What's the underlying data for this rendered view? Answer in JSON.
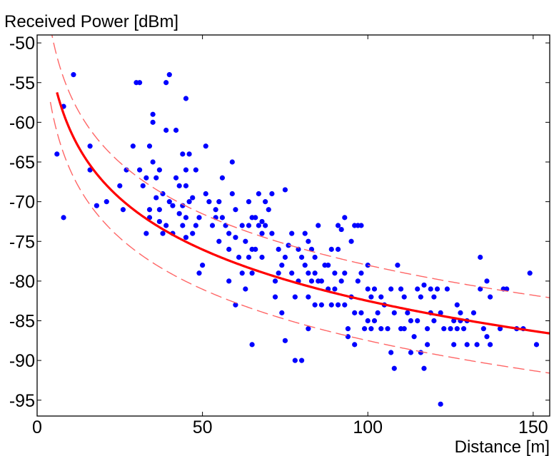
{
  "chart_data": {
    "type": "scatter",
    "title": "",
    "ylabel": "Received Power [dBm]",
    "xlabel": "Distance [m]",
    "xlim": [
      0,
      155
    ],
    "ylim": [
      -97,
      -49
    ],
    "xticks": [
      0,
      50,
      100,
      150
    ],
    "xtick_labels": [
      "0",
      "50",
      "100",
      "150"
    ],
    "yticks": [
      -50,
      -55,
      -60,
      -65,
      -70,
      -75,
      -80,
      -85,
      -90,
      -95
    ],
    "ytick_labels": [
      "-50",
      "-55",
      "-60",
      "-65",
      "-70",
      "-75",
      "-80",
      "-85",
      "-90",
      "-95"
    ],
    "grid": false,
    "legend": "none",
    "series": [
      {
        "kind": "scatter",
        "color": "#0000ff",
        "points": [
          [
            6,
            -64
          ],
          [
            8,
            -58
          ],
          [
            8,
            -72
          ],
          [
            11,
            -54
          ],
          [
            16,
            -63
          ],
          [
            16,
            -66
          ],
          [
            18,
            -70.5
          ],
          [
            21,
            -70
          ],
          [
            25,
            -68
          ],
          [
            26,
            -71
          ],
          [
            27,
            -66
          ],
          [
            29,
            -63
          ],
          [
            30,
            -55
          ],
          [
            31,
            -55
          ],
          [
            31,
            -66
          ],
          [
            32,
            -68
          ],
          [
            33,
            -67
          ],
          [
            33,
            -74
          ],
          [
            34,
            -71
          ],
          [
            34,
            -72
          ],
          [
            34,
            -63
          ],
          [
            35,
            -59
          ],
          [
            35,
            -60
          ],
          [
            35,
            -65
          ],
          [
            36,
            -67
          ],
          [
            36,
            -69.5
          ],
          [
            37,
            -66
          ],
          [
            37,
            -71
          ],
          [
            37,
            -72.5
          ],
          [
            38,
            -69
          ],
          [
            38,
            -74
          ],
          [
            39,
            -55
          ],
          [
            39,
            -61
          ],
          [
            39,
            -73
          ],
          [
            40,
            -54
          ],
          [
            40,
            -70
          ],
          [
            41,
            -70.5
          ],
          [
            41,
            -74
          ],
          [
            42,
            -61
          ],
          [
            42,
            -67
          ],
          [
            43,
            -68
          ],
          [
            43,
            -71.5
          ],
          [
            44,
            -64
          ],
          [
            44,
            -70.5
          ],
          [
            44,
            -73
          ],
          [
            45,
            -57
          ],
          [
            45,
            -66
          ],
          [
            45,
            -68
          ],
          [
            45,
            -72
          ],
          [
            45,
            -74.5
          ],
          [
            46,
            -64
          ],
          [
            46,
            -70
          ],
          [
            47,
            -69.5
          ],
          [
            47,
            -74
          ],
          [
            48,
            -66
          ],
          [
            48,
            -73
          ],
          [
            49,
            -72
          ],
          [
            49,
            -79
          ],
          [
            50,
            -78
          ],
          [
            51,
            -63
          ],
          [
            51,
            -69
          ],
          [
            52,
            -70
          ],
          [
            53,
            -73
          ],
          [
            54,
            -71
          ],
          [
            54,
            -72
          ],
          [
            55,
            -70
          ],
          [
            55,
            -75
          ],
          [
            56,
            -67
          ],
          [
            56,
            -72
          ],
          [
            57,
            -73
          ],
          [
            58,
            -74
          ],
          [
            58,
            -76
          ],
          [
            58,
            -80
          ],
          [
            59,
            -65
          ],
          [
            59,
            -69
          ],
          [
            60,
            -71
          ],
          [
            60,
            -74.5
          ],
          [
            60,
            -83
          ],
          [
            61,
            -77
          ],
          [
            62,
            -73
          ],
          [
            62,
            -79
          ],
          [
            63,
            -75
          ],
          [
            63,
            -81
          ],
          [
            64,
            -70
          ],
          [
            64,
            -73
          ],
          [
            64,
            -77
          ],
          [
            65,
            -72
          ],
          [
            65,
            -76
          ],
          [
            65,
            -79
          ],
          [
            65,
            -88
          ],
          [
            66,
            -72
          ],
          [
            66,
            -76
          ],
          [
            67,
            -69
          ],
          [
            67,
            -73
          ],
          [
            68,
            -72.5
          ],
          [
            68,
            -74
          ],
          [
            68,
            -77
          ],
          [
            69,
            -70
          ],
          [
            69,
            -73
          ],
          [
            70,
            -71
          ],
          [
            71,
            -69
          ],
          [
            71,
            -74
          ],
          [
            72,
            -82
          ],
          [
            72,
            -80
          ],
          [
            73,
            -76
          ],
          [
            73,
            -79
          ],
          [
            74,
            -84
          ],
          [
            74,
            -78
          ],
          [
            75,
            -68.5
          ],
          [
            75,
            -77
          ],
          [
            75,
            -87.5
          ],
          [
            76,
            -75.5
          ],
          [
            77,
            -74
          ],
          [
            77,
            -79
          ],
          [
            78,
            -90
          ],
          [
            78,
            -82
          ],
          [
            79,
            -76
          ],
          [
            79,
            -80
          ],
          [
            80,
            -77
          ],
          [
            80,
            -90
          ],
          [
            81,
            -74
          ],
          [
            81,
            -78
          ],
          [
            82,
            -75
          ],
          [
            82,
            -79
          ],
          [
            82,
            -82
          ],
          [
            82,
            -86
          ],
          [
            83,
            -76
          ],
          [
            83,
            -80
          ],
          [
            84,
            -77
          ],
          [
            84,
            -79
          ],
          [
            84,
            -83
          ],
          [
            85,
            -73
          ],
          [
            85,
            -80
          ],
          [
            86,
            -80
          ],
          [
            86,
            -83
          ],
          [
            87,
            -78
          ],
          [
            88,
            -78
          ],
          [
            88,
            -81
          ],
          [
            89,
            -76
          ],
          [
            89,
            -83
          ],
          [
            90,
            -79
          ],
          [
            90,
            -81
          ],
          [
            91,
            -73
          ],
          [
            91,
            -76
          ],
          [
            91,
            -83
          ],
          [
            92,
            -73.5
          ],
          [
            92,
            -80
          ],
          [
            93,
            -72
          ],
          [
            93,
            -79
          ],
          [
            93,
            -83
          ],
          [
            94,
            -86
          ],
          [
            94,
            -87
          ],
          [
            95,
            -75
          ],
          [
            95,
            -82
          ],
          [
            96,
            -73
          ],
          [
            96,
            -84
          ],
          [
            96,
            -88
          ],
          [
            97,
            -73
          ],
          [
            97,
            -80
          ],
          [
            98,
            -73
          ],
          [
            98,
            -79
          ],
          [
            98,
            -84
          ],
          [
            99,
            -86
          ],
          [
            100,
            -78
          ],
          [
            100,
            -81
          ],
          [
            100,
            -85
          ],
          [
            101,
            -82
          ],
          [
            101,
            -86
          ],
          [
            102,
            -81
          ],
          [
            102,
            -85
          ],
          [
            103,
            -84
          ],
          [
            104,
            -86
          ],
          [
            104,
            -82
          ],
          [
            105,
            -83
          ],
          [
            106,
            -86
          ],
          [
            107,
            -81
          ],
          [
            107,
            -89
          ],
          [
            108,
            -91
          ],
          [
            108,
            -84
          ],
          [
            109,
            -78
          ],
          [
            110,
            -81
          ],
          [
            110,
            -86
          ],
          [
            111,
            -82
          ],
          [
            111,
            -86
          ],
          [
            112,
            -84
          ],
          [
            113,
            -85
          ],
          [
            113,
            -89
          ],
          [
            114,
            -87
          ],
          [
            115,
            -85
          ],
          [
            115,
            -81
          ],
          [
            116,
            -82
          ],
          [
            116,
            -89
          ],
          [
            117,
            -80.5
          ],
          [
            117,
            -91
          ],
          [
            118,
            -86
          ],
          [
            118,
            -88
          ],
          [
            119,
            -81
          ],
          [
            119,
            -84
          ],
          [
            120,
            -82
          ],
          [
            120,
            -85
          ],
          [
            121,
            -81
          ],
          [
            122,
            -95.5
          ],
          [
            122,
            -84
          ],
          [
            123,
            -86
          ],
          [
            124,
            -81
          ],
          [
            125,
            -86
          ],
          [
            126,
            -85
          ],
          [
            126,
            -88
          ],
          [
            127,
            -83
          ],
          [
            127,
            -86
          ],
          [
            128,
            -84
          ],
          [
            128,
            -85
          ],
          [
            129,
            -86
          ],
          [
            130,
            -85
          ],
          [
            130,
            -88
          ],
          [
            132,
            -84
          ],
          [
            133,
            -88
          ],
          [
            134,
            -77
          ],
          [
            134,
            -81
          ],
          [
            135,
            -86
          ],
          [
            136,
            -87
          ],
          [
            136,
            -80
          ],
          [
            137,
            -88
          ],
          [
            137,
            -82
          ],
          [
            140,
            -86
          ],
          [
            141,
            -81
          ],
          [
            142,
            -81
          ],
          [
            145,
            -86
          ],
          [
            147,
            -86
          ],
          [
            149,
            -79
          ],
          [
            151,
            -88
          ]
        ]
      },
      {
        "kind": "line",
        "style": "solid",
        "color": "#ff0000",
        "model": {
          "offset": -39.5,
          "slope_per_decade": -21.5,
          "x_start": 6,
          "x_end": 155
        }
      },
      {
        "kind": "line",
        "style": "dashed",
        "color": "#ff6666",
        "model": {
          "offset": -35.0,
          "slope_per_decade": -21.5,
          "x_start": 4,
          "x_end": 155
        }
      },
      {
        "kind": "line",
        "style": "dashed",
        "color": "#ff6666",
        "model": {
          "offset": -44.5,
          "slope_per_decade": -21.5,
          "x_start": 4,
          "x_end": 155
        }
      }
    ]
  }
}
